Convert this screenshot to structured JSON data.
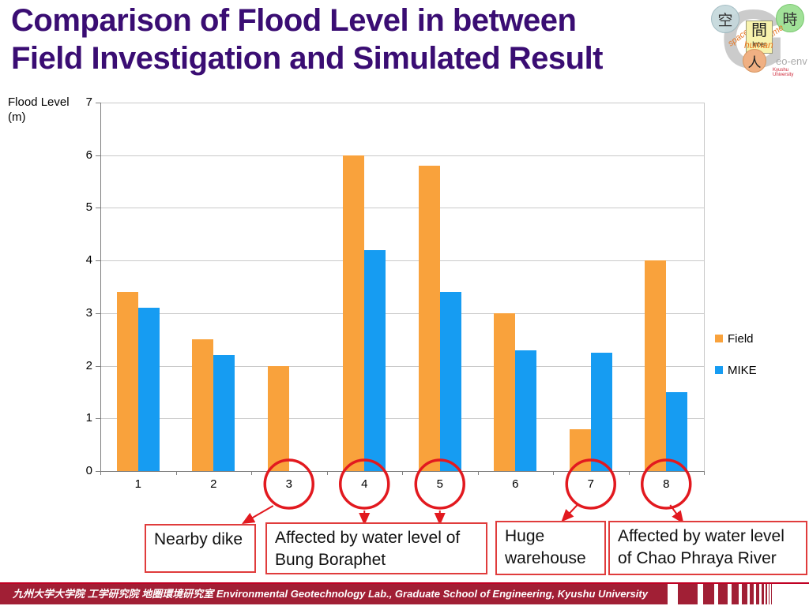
{
  "header": {
    "line1": "Comparison of Flood Level in between",
    "line2": "Field Investigation and Simulated Result"
  },
  "logo": {
    "kanji_space": "空",
    "kanji_time": "時",
    "kanji_inter": "間",
    "kanji_human": "人",
    "word_space": "space",
    "word_time": "time",
    "word_inter": "Inter",
    "word_human": "human",
    "letter": "G",
    "brand": "eo-env",
    "university": "Kyushu University"
  },
  "chart_data": {
    "type": "bar",
    "categories": [
      "1",
      "2",
      "3",
      "4",
      "5",
      "6",
      "7",
      "8"
    ],
    "series": [
      {
        "name": "Field",
        "color": "#F9A23C",
        "values": [
          3.4,
          2.5,
          2.0,
          6.0,
          5.8,
          3.0,
          0.8,
          4.0
        ]
      },
      {
        "name": "MIKE",
        "color": "#169CF2",
        "values": [
          3.1,
          2.2,
          null,
          4.2,
          3.4,
          2.3,
          2.25,
          1.5
        ]
      }
    ],
    "ylabel": "Flood Level (m)",
    "ylabel_lines": [
      "Flood Level",
      "(m)"
    ],
    "xlabel": "",
    "ylim": [
      0,
      7
    ],
    "yticks": [
      0,
      1,
      2,
      3,
      4,
      5,
      6,
      7
    ],
    "grid": true,
    "legend_position": "right",
    "circled_categories": [
      "3",
      "4",
      "5",
      "7",
      "8"
    ]
  },
  "annotations": [
    {
      "label": "Nearby dike",
      "targets": [
        "3"
      ]
    },
    {
      "label": "Affected by water level of Bung Boraphet",
      "targets": [
        "4",
        "5"
      ]
    },
    {
      "label": "Huge warehouse",
      "targets": [
        "7"
      ]
    },
    {
      "label": "Affected by water level of Chao Phraya River",
      "targets": [
        "8"
      ]
    }
  ],
  "footer": {
    "text": "九州大学大学院 工学研究院 地圏環境研究室  Environmental Geotechnology Lab., Graduate School of Engineering, Kyushu University"
  },
  "colors": {
    "title": "#3A0D73",
    "accent_red": "#E2191F",
    "callout_border": "#E03C3C",
    "footer_band": "#A11F35",
    "gridline": "#C9C9C9",
    "axis": "#7F7F7F"
  }
}
